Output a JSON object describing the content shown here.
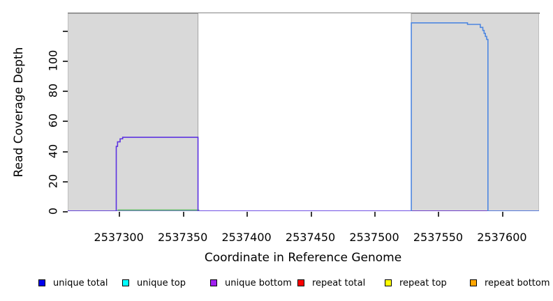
{
  "chart_data": {
    "type": "line",
    "title": "",
    "xlabel": "Coordinate in Reference Genome",
    "ylabel": "Read Coverage Depth",
    "xlim": [
      2537260,
      2537629
    ],
    "ylim": [
      0,
      131.4
    ],
    "grid": false,
    "x_ticks": [
      {
        "value": 2537300,
        "label": "2537300"
      },
      {
        "value": 2537350,
        "label": "2537350"
      },
      {
        "value": 2537400,
        "label": "2537400"
      },
      {
        "value": 2537450,
        "label": "2537450"
      },
      {
        "value": 2537500,
        "label": "2537500"
      },
      {
        "value": 2537550,
        "label": "2537550"
      },
      {
        "value": 2537600,
        "label": "2537600"
      }
    ],
    "y_ticks": [
      {
        "value": 0,
        "label": "0"
      },
      {
        "value": 20,
        "label": "20"
      },
      {
        "value": 40,
        "label": "40"
      },
      {
        "value": 60,
        "label": "60"
      },
      {
        "value": 80,
        "label": "80"
      },
      {
        "value": 100,
        "label": "100"
      },
      {
        "value": 120,
        "label": ""
      }
    ],
    "shaded_regions": [
      {
        "name": "shaded-region-left",
        "x0": 2537260,
        "x1": 2537362,
        "fill": "#d9d9d9",
        "stroke": "#a3a3a3"
      },
      {
        "name": "shaded-region-right",
        "x0": 2537529,
        "x1": 2537629,
        "fill": "#d9d9d9",
        "stroke": "#a3a3a3"
      }
    ],
    "series": [
      {
        "name": "zero-baseline",
        "color": "#6f5ce8",
        "width": 1.6,
        "dy": 0,
        "points": [
          [
            2537260,
            0
          ],
          [
            2537629,
            0
          ]
        ]
      },
      {
        "name": "green-baseline-segment",
        "color": "#63bb6a",
        "width": 1.6,
        "dy": -1.6,
        "points": [
          [
            2537299,
            0
          ],
          [
            2537363,
            0
          ]
        ]
      },
      {
        "name": "repeat-total-baseline-segment",
        "color": "#e05565",
        "width": 1.6,
        "dy": 0,
        "points": [
          [
            2537529,
            0
          ],
          [
            2537589,
            0
          ]
        ]
      },
      {
        "name": "unique-bottom-curve",
        "color": "#5c33e0",
        "width": 1.6,
        "dy": 0,
        "points": [
          [
            2537260,
            0
          ],
          [
            2537298,
            0
          ],
          [
            2537298,
            43
          ],
          [
            2537299,
            43
          ],
          [
            2537299,
            46
          ],
          [
            2537301,
            46
          ],
          [
            2537301,
            48
          ],
          [
            2537303,
            48
          ],
          [
            2537303,
            49
          ],
          [
            2537362,
            49
          ],
          [
            2537362,
            0
          ],
          [
            2537629,
            0
          ]
        ]
      },
      {
        "name": "unique-total-curve",
        "color": "#4d86e0",
        "width": 1.6,
        "dy": 0,
        "points": [
          [
            2537529,
            0
          ],
          [
            2537529,
            125
          ],
          [
            2537573,
            125
          ],
          [
            2537573,
            124
          ],
          [
            2537583,
            124
          ],
          [
            2537583,
            122
          ],
          [
            2537585,
            122
          ],
          [
            2537585,
            120
          ],
          [
            2537586,
            120
          ],
          [
            2537586,
            118
          ],
          [
            2537587,
            118
          ],
          [
            2537587,
            116
          ],
          [
            2537588,
            116
          ],
          [
            2537588,
            114
          ],
          [
            2537589,
            114
          ],
          [
            2537589,
            0
          ],
          [
            2537629,
            0
          ]
        ]
      }
    ],
    "legend": [
      {
        "label": "unique total",
        "color": "#0000ee"
      },
      {
        "label": "unique top",
        "color": "#00ffff"
      },
      {
        "label": "unique bottom",
        "color": "#a020f0"
      },
      {
        "label": "repeat total",
        "color": "#ff0000"
      },
      {
        "label": "repeat top",
        "color": "#ffff00"
      },
      {
        "label": "repeat bottom",
        "color": "#ffa500"
      }
    ],
    "legend_position": "bottom"
  }
}
